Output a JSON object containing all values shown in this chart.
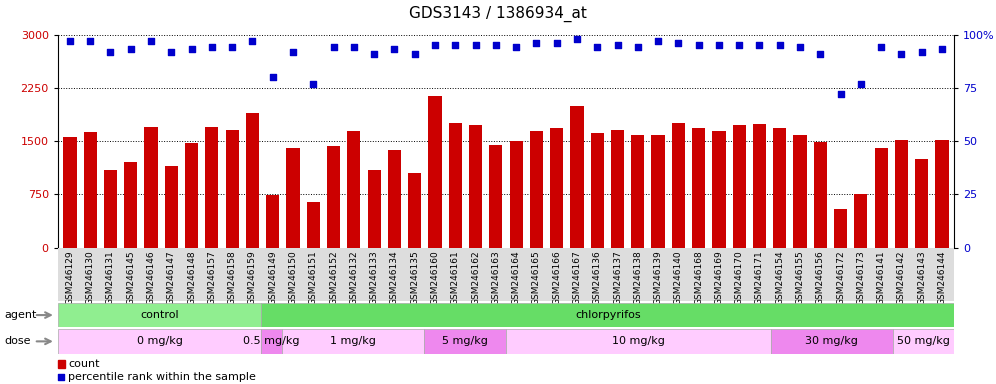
{
  "title": "GDS3143 / 1386934_at",
  "samples": [
    "GSM246129",
    "GSM246130",
    "GSM246131",
    "GSM246145",
    "GSM246146",
    "GSM246147",
    "GSM246148",
    "GSM246157",
    "GSM246158",
    "GSM246159",
    "GSM246149",
    "GSM246150",
    "GSM246151",
    "GSM246152",
    "GSM246132",
    "GSM246133",
    "GSM246134",
    "GSM246135",
    "GSM246160",
    "GSM246161",
    "GSM246162",
    "GSM246163",
    "GSM246164",
    "GSM246165",
    "GSM246166",
    "GSM246167",
    "GSM246136",
    "GSM246137",
    "GSM246138",
    "GSM246139",
    "GSM246140",
    "GSM246168",
    "GSM246169",
    "GSM246170",
    "GSM246171",
    "GSM246154",
    "GSM246155",
    "GSM246156",
    "GSM246172",
    "GSM246173",
    "GSM246141",
    "GSM246142",
    "GSM246143",
    "GSM246144"
  ],
  "bar_values": [
    1560,
    1630,
    1100,
    1210,
    1700,
    1150,
    1480,
    1700,
    1660,
    1900,
    740,
    1400,
    650,
    1430,
    1640,
    1100,
    1380,
    1050,
    2130,
    1760,
    1730,
    1440,
    1500,
    1640,
    1680,
    2000,
    1620,
    1660,
    1590,
    1590,
    1750,
    1680,
    1640,
    1720,
    1740,
    1680,
    1580,
    1490,
    540,
    760,
    1400,
    1510,
    1250,
    1520
  ],
  "pct_values": [
    97,
    97,
    92,
    93,
    97,
    92,
    93,
    94,
    94,
    97,
    80,
    92,
    77,
    94,
    94,
    91,
    93,
    91,
    95,
    95,
    95,
    95,
    94,
    96,
    96,
    98,
    94,
    95,
    94,
    97,
    96,
    95,
    95,
    95,
    95,
    95,
    94,
    91,
    72,
    77,
    94,
    91,
    92,
    93
  ],
  "agent_groups": [
    {
      "label": "control",
      "start": 0,
      "end": 9,
      "color": "#90ee90"
    },
    {
      "label": "chlorpyrifos",
      "start": 10,
      "end": 43,
      "color": "#66dd66"
    }
  ],
  "dose_groups": [
    {
      "label": "0 mg/kg",
      "start": 0,
      "end": 9,
      "color": "#ffccff"
    },
    {
      "label": "0.5 mg/kg",
      "start": 10,
      "end": 10,
      "color": "#ee88ee"
    },
    {
      "label": "1 mg/kg",
      "start": 11,
      "end": 17,
      "color": "#ffccff"
    },
    {
      "label": "5 mg/kg",
      "start": 18,
      "end": 21,
      "color": "#ee88ee"
    },
    {
      "label": "10 mg/kg",
      "start": 22,
      "end": 34,
      "color": "#ffccff"
    },
    {
      "label": "30 mg/kg",
      "start": 35,
      "end": 40,
      "color": "#ee88ee"
    },
    {
      "label": "50 mg/kg",
      "start": 41,
      "end": 43,
      "color": "#ffccff"
    }
  ],
  "bar_color": "#cc0000",
  "dot_color": "#0000cc",
  "ylim_left": [
    0,
    3000
  ],
  "ylim_right": [
    0,
    100
  ],
  "yticks_left": [
    0,
    750,
    1500,
    2250,
    3000
  ],
  "yticks_right": [
    0,
    25,
    50,
    75,
    100
  ],
  "background_color": "#ffffff",
  "title_fontsize": 11,
  "tick_fontsize": 6.5
}
